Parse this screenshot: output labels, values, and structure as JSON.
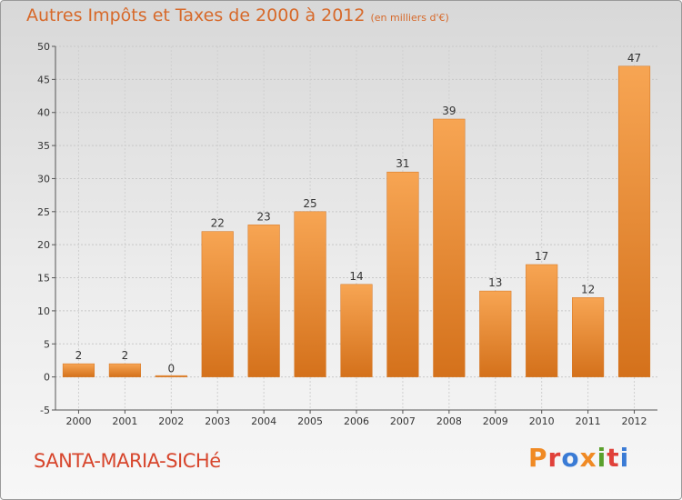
{
  "header": {
    "title": "Autres Impôts et Taxes de 2000 à 2012",
    "unit": "(en milliers d'€)"
  },
  "footer": {
    "commune": "SANTA-MARIA-SICHé",
    "logo": "Proxiti"
  },
  "colors": {
    "title": "#d7692a",
    "commune": "#d7462d",
    "bar_light": "#f7a553",
    "bar_dark": "#d4711b",
    "logo_letters": [
      "#f08a24",
      "#e0413a",
      "#3a7bd5",
      "#f08a24",
      "#5aa02c",
      "#e0413a",
      "#3a7bd5"
    ]
  },
  "chart_data": {
    "type": "bar",
    "title": "Autres Impôts et Taxes de 2000 à 2012",
    "categories": [
      "2000",
      "2001",
      "2002",
      "2003",
      "2004",
      "2005",
      "2006",
      "2007",
      "2008",
      "2009",
      "2010",
      "2011",
      "2012"
    ],
    "values": [
      2,
      2,
      0,
      22,
      23,
      25,
      14,
      31,
      39,
      13,
      17,
      12,
      47
    ],
    "ylim": [
      -5,
      50
    ],
    "yticks": [
      -5,
      0,
      5,
      10,
      15,
      20,
      25,
      30,
      35,
      40,
      45,
      50
    ],
    "grid": true,
    "xlabel": "",
    "ylabel": ""
  }
}
